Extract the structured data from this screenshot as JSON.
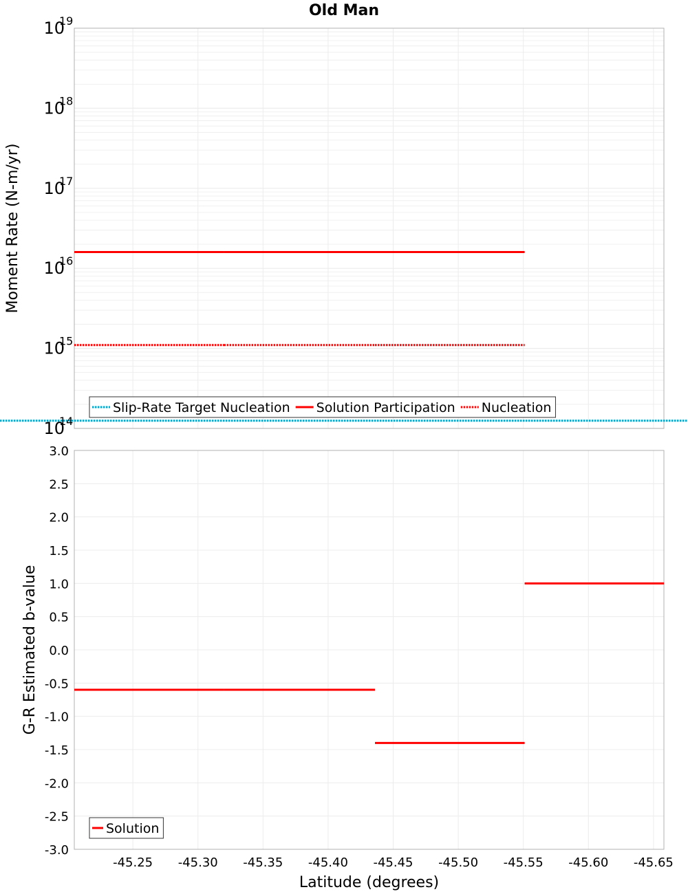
{
  "title": "Old Man",
  "x_axis": {
    "label": "Latitude (degrees)",
    "reversed": true,
    "range": [
      -45.205,
      -45.658
    ],
    "ticks": [
      -45.25,
      -45.3,
      -45.35,
      -45.4,
      -45.45,
      -45.5,
      -45.55,
      -45.6,
      -45.65
    ],
    "tick_labels": [
      "-45.25",
      "-45.30",
      "-45.35",
      "-45.40",
      "-45.45",
      "-45.50",
      "-45.55",
      "-45.60",
      "-45.65"
    ]
  },
  "colors": {
    "solution": "#ff0000",
    "target": "#00aacc",
    "grid": "#ececec",
    "frame": "#b0b0b0"
  },
  "chart_data": [
    {
      "type": "line",
      "panel": "top",
      "title": "Old Man",
      "ylabel": "Moment Rate (N-m/yr)",
      "xlabel": "",
      "yscale": "log",
      "ylim": [
        100000000000000.0,
        1e+19
      ],
      "ytick_exponents": [
        14,
        15,
        16,
        17,
        18,
        19
      ],
      "grid": true,
      "legend_position": "bottom-left",
      "series": [
        {
          "name": "Slip-Rate Target Nucleation",
          "style": "dotted",
          "color": "#00aacc",
          "segments": [
            {
              "x": [
                -45.205,
                -45.658
              ],
              "y": 125000000000000.0
            }
          ]
        },
        {
          "name": "Solution Participation",
          "style": "solid",
          "color": "#ff0000",
          "segments": [
            {
              "x": [
                -45.205,
                -45.32
              ],
              "y": 1.6e+16
            },
            {
              "x": [
                -45.32,
                -45.436
              ],
              "y": 1.6e+16
            },
            {
              "x": [
                -45.436,
                -45.551
              ],
              "y": 1.6e+16
            }
          ]
        },
        {
          "name": "Nucleation",
          "style": "dotted",
          "color": "#ff0000",
          "segments": [
            {
              "x": [
                -45.205,
                -45.32
              ],
              "y": 1100000000000000.0
            },
            {
              "x": [
                -45.32,
                -45.436
              ],
              "y": 1100000000000000.0
            },
            {
              "x": [
                -45.436,
                -45.551
              ],
              "y": 1100000000000000.0
            }
          ]
        }
      ]
    },
    {
      "type": "line",
      "panel": "bottom",
      "ylabel": "G-R Estimated b-value",
      "xlabel": "Latitude (degrees)",
      "yscale": "linear",
      "ylim": [
        -3.0,
        3.0
      ],
      "yticks": [
        -3.0,
        -2.5,
        -2.0,
        -1.5,
        -1.0,
        -0.5,
        0.0,
        0.5,
        1.0,
        1.5,
        2.0,
        2.5,
        3.0
      ],
      "ytick_labels": [
        "-3.0",
        "-2.5",
        "-2.0",
        "-1.5",
        "-1.0",
        "-0.5",
        "0.0",
        "0.5",
        "1.0",
        "1.5",
        "2.0",
        "2.5",
        "3.0"
      ],
      "grid": true,
      "legend_position": "bottom-left",
      "series": [
        {
          "name": "Solution",
          "style": "solid",
          "color": "#ff0000",
          "segments": [
            {
              "x": [
                -45.205,
                -45.32
              ],
              "y": -0.6
            },
            {
              "x": [
                -45.32,
                -45.436
              ],
              "y": -0.6
            },
            {
              "x": [
                -45.436,
                -45.551
              ],
              "y": -1.4
            },
            {
              "x": [
                -45.551,
                -45.658
              ],
              "y": 1.0
            }
          ]
        }
      ]
    }
  ]
}
